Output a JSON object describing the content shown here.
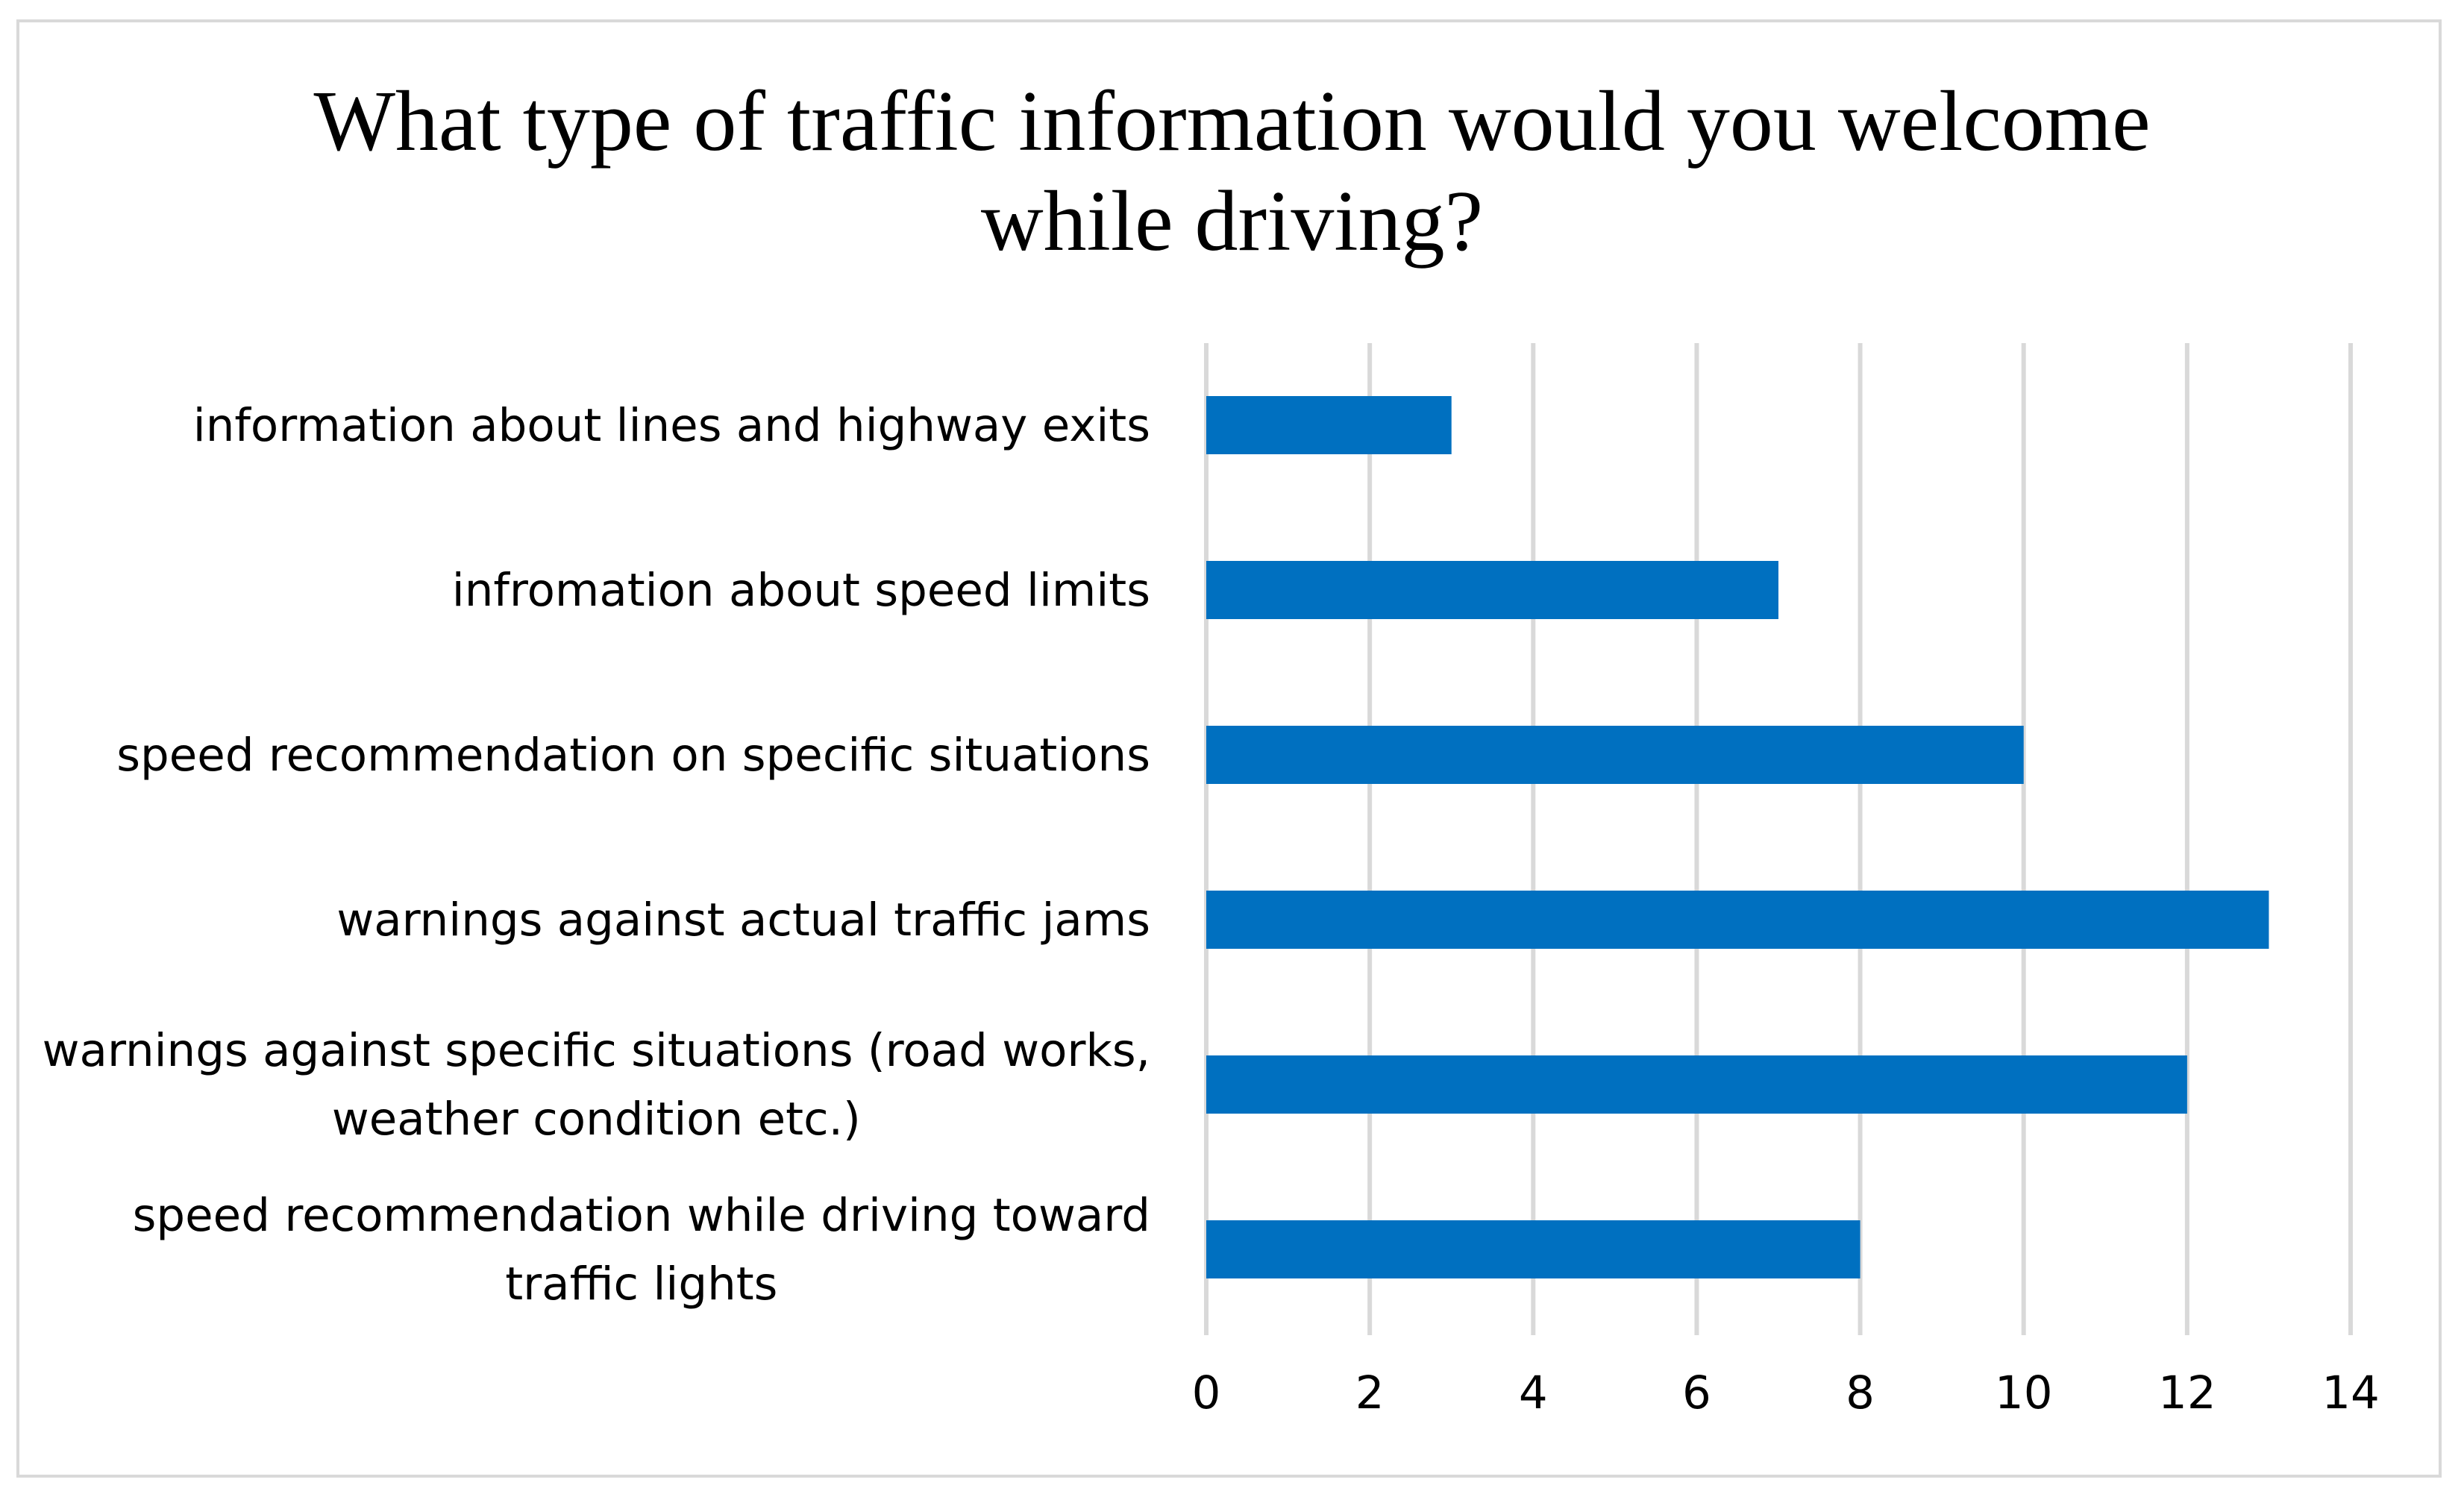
{
  "chart_data": {
    "type": "bar",
    "orientation": "horizontal",
    "title": "What type of traffic information would you welcome while driving?",
    "title_lines": [
      "What type of traffic information would you welcome",
      "while driving?"
    ],
    "categories": [
      "information about lines and highway exits",
      "infromation about speed limits",
      "speed recommendation on specific situations",
      "warnings against actual traffic jams",
      "warnings against specific situations (road works, weather condition etc.)",
      "speed recommendation while driving toward traffic lights"
    ],
    "category_lines": [
      [
        "information about lines and highway exits"
      ],
      [
        "infromation about speed limits"
      ],
      [
        "speed recommendation on specific situations"
      ],
      [
        "warnings against actual traffic jams"
      ],
      [
        "warnings against specific situations (road works,",
        "weather condition etc.)"
      ],
      [
        "speed recommendation while driving toward",
        "traffic lights"
      ]
    ],
    "values": [
      3,
      7,
      10,
      13,
      12,
      8
    ],
    "xlim": [
      0,
      14
    ],
    "xticks": [
      "0",
      "2",
      "4",
      "6",
      "8",
      "10",
      "12",
      "14"
    ],
    "xlabel": "",
    "ylabel": "",
    "grid": "vertical",
    "legend": "none",
    "bar_color": "#0070c0",
    "grid_color": "#d9d9d9",
    "border_color": "#d9d9d9"
  }
}
